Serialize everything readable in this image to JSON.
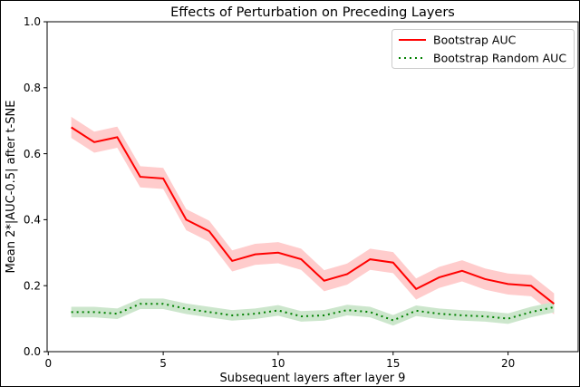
{
  "figure": {
    "background": "#ffffff",
    "border_color": "#000000"
  },
  "chart_data": {
    "type": "line",
    "title": "Effects of Perturbation on Preceding Layers",
    "xlabel": "Subsequent layers after layer 9",
    "ylabel": "Mean 2*|AUC-0.5| after t-SNE",
    "xlim": [
      -0.05,
      23.05
    ],
    "ylim": [
      0.0,
      1.0
    ],
    "grid": false,
    "xticks": {
      "values": [
        0,
        5,
        10,
        15,
        20
      ],
      "labels": [
        "0",
        "5",
        "10",
        "15",
        "20"
      ]
    },
    "yticks": {
      "values": [
        0.0,
        0.2,
        0.4,
        0.6,
        0.8,
        1.0
      ],
      "labels": [
        "0.0",
        "0.2",
        "0.4",
        "0.6",
        "0.8",
        "1.0"
      ]
    },
    "x": [
      1,
      2,
      3,
      4,
      5,
      6,
      7,
      8,
      9,
      10,
      11,
      12,
      13,
      14,
      15,
      16,
      17,
      18,
      19,
      20,
      21,
      22
    ],
    "series": [
      {
        "name": "Bootstrap AUC",
        "color": "#ff0000",
        "line_style": "solid",
        "band_color": "#ffcccc",
        "band_halfwidth": 0.032,
        "values": [
          0.68,
          0.635,
          0.65,
          0.53,
          0.525,
          0.4,
          0.365,
          0.275,
          0.295,
          0.3,
          0.28,
          0.215,
          0.235,
          0.28,
          0.27,
          0.19,
          0.225,
          0.245,
          0.22,
          0.205,
          0.2,
          0.145
        ]
      },
      {
        "name": "Bootstrap Random AUC",
        "color": "#008000",
        "line_style": "dotted",
        "band_color": "#cce6cc",
        "band_halfwidth": 0.016,
        "values": [
          0.12,
          0.12,
          0.115,
          0.145,
          0.145,
          0.13,
          0.12,
          0.11,
          0.115,
          0.125,
          0.107,
          0.11,
          0.126,
          0.12,
          0.095,
          0.124,
          0.115,
          0.11,
          0.107,
          0.1,
          0.12,
          0.135
        ]
      }
    ],
    "legend": {
      "position": "upper right"
    }
  }
}
